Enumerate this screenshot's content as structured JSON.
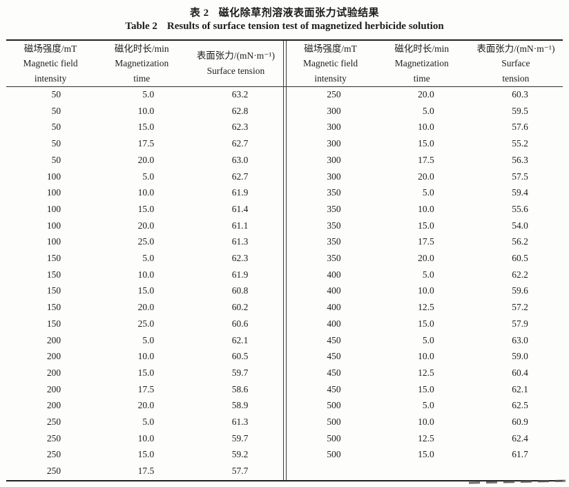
{
  "page": {
    "title_zh_label": "表 2",
    "title_zh_text": "磁化除草剂溶液表面张力试验结果",
    "title_en_label": "Table 2",
    "title_en_text": "Results of surface tension test of magnetized herbicide solution"
  },
  "columns_semantic": [
    "magnetic-field-intensity",
    "magnetization-time",
    "surface-tension"
  ],
  "left_table": {
    "header": [
      {
        "lines": [
          "磁场强度/mT",
          "Magnetic field",
          "intensity"
        ]
      },
      {
        "lines": [
          "磁化时长/min",
          "Magnetization",
          "time"
        ]
      },
      {
        "lines": [
          "表面张力/(mN·m⁻¹)",
          "Surface tension"
        ]
      }
    ],
    "rows": [
      [
        "50",
        "5.0",
        "63.2"
      ],
      [
        "50",
        "10.0",
        "62.8"
      ],
      [
        "50",
        "15.0",
        "62.3"
      ],
      [
        "50",
        "17.5",
        "62.7"
      ],
      [
        "50",
        "20.0",
        "63.0"
      ],
      [
        "100",
        "5.0",
        "62.7"
      ],
      [
        "100",
        "10.0",
        "61.9"
      ],
      [
        "100",
        "15.0",
        "61.4"
      ],
      [
        "100",
        "20.0",
        "61.1"
      ],
      [
        "100",
        "25.0",
        "61.3"
      ],
      [
        "150",
        "5.0",
        "62.3"
      ],
      [
        "150",
        "10.0",
        "61.9"
      ],
      [
        "150",
        "15.0",
        "60.8"
      ],
      [
        "150",
        "20.0",
        "60.2"
      ],
      [
        "150",
        "25.0",
        "60.6"
      ],
      [
        "200",
        "5.0",
        "62.1"
      ],
      [
        "200",
        "10.0",
        "60.5"
      ],
      [
        "200",
        "15.0",
        "59.7"
      ],
      [
        "200",
        "17.5",
        "58.6"
      ],
      [
        "200",
        "20.0",
        "58.9"
      ],
      [
        "250",
        "5.0",
        "61.3"
      ],
      [
        "250",
        "10.0",
        "59.7"
      ],
      [
        "250",
        "15.0",
        "59.2"
      ],
      [
        "250",
        "17.5",
        "57.7"
      ]
    ]
  },
  "right_table": {
    "header": [
      {
        "lines": [
          "磁场强度/mT",
          "Magnetic field",
          "intensity"
        ]
      },
      {
        "lines": [
          "磁化时长/min",
          "Magnetization",
          "time"
        ]
      },
      {
        "lines": [
          "表面张力/(mN·m⁻¹)",
          "Surface",
          "tension"
        ]
      }
    ],
    "rows": [
      [
        "250",
        "20.0",
        "60.3"
      ],
      [
        "300",
        "5.0",
        "59.5"
      ],
      [
        "300",
        "10.0",
        "57.6"
      ],
      [
        "300",
        "15.0",
        "55.2"
      ],
      [
        "300",
        "17.5",
        "56.3"
      ],
      [
        "300",
        "20.0",
        "57.5"
      ],
      [
        "350",
        "5.0",
        "59.4"
      ],
      [
        "350",
        "10.0",
        "55.6"
      ],
      [
        "350",
        "15.0",
        "54.0"
      ],
      [
        "350",
        "17.5",
        "56.2"
      ],
      [
        "350",
        "20.0",
        "60.5"
      ],
      [
        "400",
        "5.0",
        "62.2"
      ],
      [
        "400",
        "10.0",
        "59.6"
      ],
      [
        "400",
        "12.5",
        "57.2"
      ],
      [
        "400",
        "15.0",
        "57.9"
      ],
      [
        "450",
        "5.0",
        "63.0"
      ],
      [
        "450",
        "10.0",
        "59.0"
      ],
      [
        "450",
        "12.5",
        "60.4"
      ],
      [
        "450",
        "15.0",
        "62.1"
      ],
      [
        "500",
        "5.0",
        "62.5"
      ],
      [
        "500",
        "10.0",
        "60.9"
      ],
      [
        "500",
        "12.5",
        "62.4"
      ],
      [
        "500",
        "15.0",
        "61.7"
      ]
    ]
  }
}
